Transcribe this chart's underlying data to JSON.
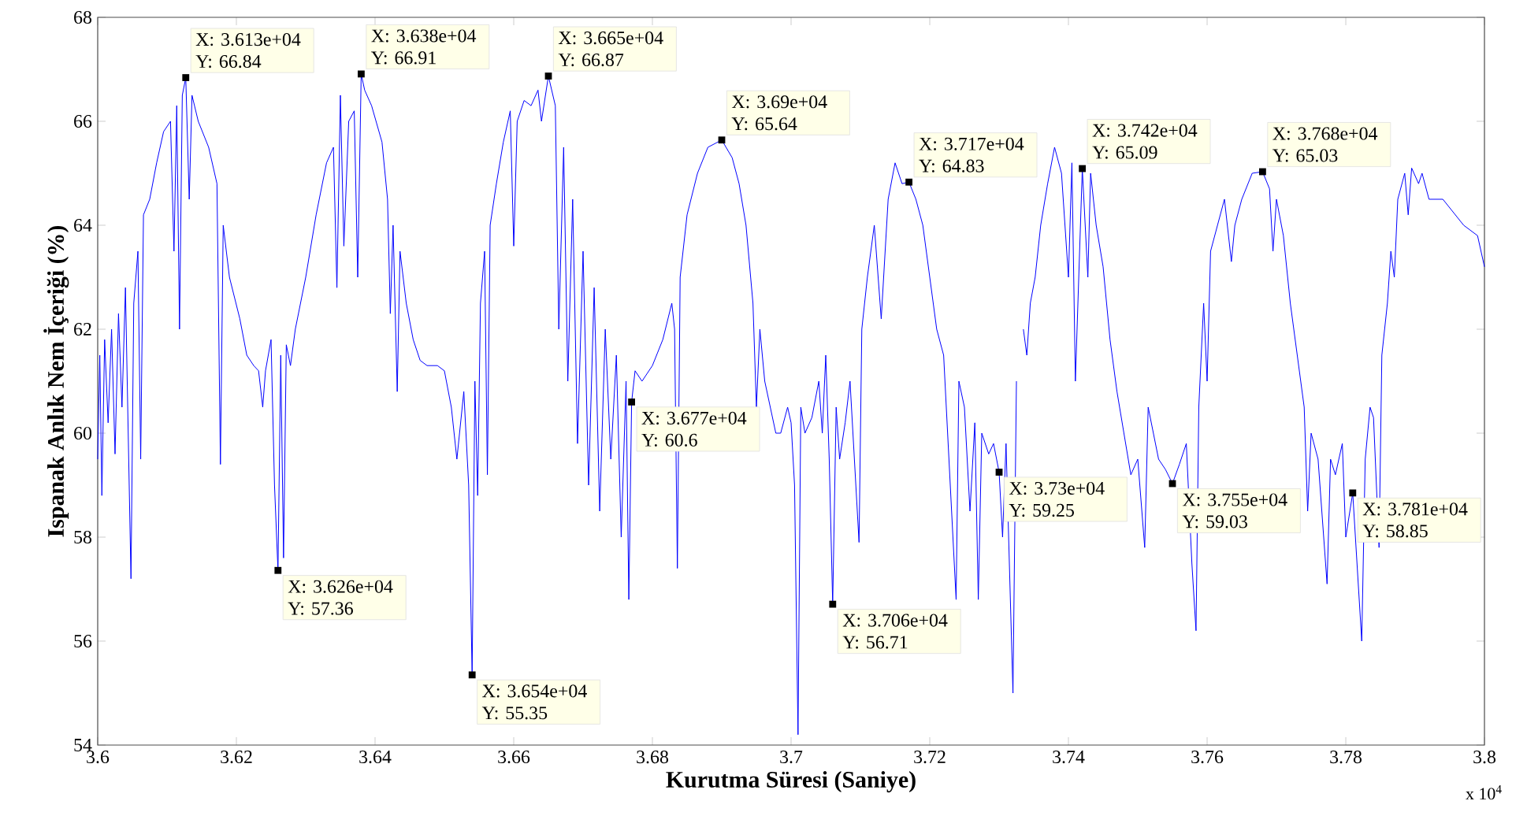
{
  "chart_data": {
    "type": "line",
    "xlabel": "Kurutma Süresi (Saniye)",
    "ylabel": "Ispanak Anlık Nem İçeriği (%)",
    "color": "#0000ff",
    "xlim": [
      3.6,
      3.8
    ],
    "ylim": [
      54,
      68
    ],
    "xticks": [
      3.6,
      3.62,
      3.64,
      3.66,
      3.68,
      3.7,
      3.72,
      3.74,
      3.76,
      3.78,
      3.8
    ],
    "yticks": [
      54,
      56,
      58,
      60,
      62,
      64,
      66,
      68
    ],
    "x": [
      3.6,
      3.6003,
      3.6006,
      3.601,
      3.6015,
      3.602,
      3.6025,
      3.603,
      3.6035,
      3.604,
      3.6048,
      3.6052,
      3.6058,
      3.6062,
      3.6066,
      3.6075,
      3.6085,
      3.6095,
      3.6105,
      3.611,
      3.6114,
      3.6118,
      3.6122,
      3.6127,
      3.6132,
      3.6136,
      3.6145,
      3.616,
      3.6172,
      3.6177,
      3.6181,
      3.619,
      3.6205,
      3.6215,
      3.6225,
      3.6232,
      3.6238,
      3.6242,
      3.625,
      3.6255,
      3.626,
      3.6264,
      3.6268,
      3.6272,
      3.6278,
      3.6285,
      3.63,
      3.6315,
      3.633,
      3.634,
      3.6345,
      3.635,
      3.6355,
      3.6362,
      3.637,
      3.6375,
      3.638,
      3.6385,
      3.6395,
      3.641,
      3.6418,
      3.6422,
      3.6426,
      3.6432,
      3.6436,
      3.6445,
      3.6455,
      3.6465,
      3.6475,
      3.649,
      3.65,
      3.651,
      3.6518,
      3.6528,
      3.6535,
      3.654,
      3.6544,
      3.6548,
      3.6552,
      3.6558,
      3.6562,
      3.6566,
      3.6575,
      3.6585,
      3.6595,
      3.66,
      3.6605,
      3.6615,
      3.6625,
      3.6635,
      3.664,
      3.665,
      3.666,
      3.6665,
      3.6672,
      3.6678,
      3.6685,
      3.6692,
      3.67,
      3.6708,
      3.6716,
      3.6724,
      3.6732,
      3.674,
      3.6748,
      3.6755,
      3.6762,
      3.6766,
      3.677,
      3.6775,
      3.6785,
      3.68,
      3.6815,
      3.6828,
      3.6832,
      3.6836,
      3.684,
      3.685,
      3.6865,
      3.688,
      3.69,
      3.6915,
      3.6925,
      3.6935,
      3.6945,
      3.695,
      3.6955,
      3.6962,
      3.697,
      3.6978,
      3.6985,
      3.6995,
      3.7,
      3.7005,
      3.701,
      3.7014,
      3.702,
      3.703,
      3.704,
      3.7045,
      3.705,
      3.7055,
      3.706,
      3.7065,
      3.707,
      3.7078,
      3.7085,
      3.7098,
      3.7102,
      3.711,
      3.712,
      3.713,
      3.714,
      3.715,
      3.716,
      3.717,
      3.718,
      3.719,
      3.72,
      3.721,
      3.722,
      3.7238,
      3.7242,
      3.725,
      3.7258,
      3.7265,
      3.727,
      3.7275,
      3.7285,
      3.7292,
      3.73,
      3.7305,
      3.731,
      3.732,
      3.7325,
      3.733,
      3.7335,
      3.734,
      3.7345,
      3.7352,
      3.736,
      3.737,
      3.738,
      3.739,
      3.74,
      3.7405,
      3.741,
      3.742,
      3.7428,
      3.7432,
      3.744,
      3.745,
      3.746,
      3.747,
      3.748,
      3.749,
      3.75,
      3.751,
      3.7515,
      3.753,
      3.754,
      3.755,
      3.756,
      3.757,
      3.7578,
      3.7584,
      3.7588,
      3.7595,
      3.76,
      3.7605,
      3.7615,
      3.7625,
      3.7635,
      3.764,
      3.765,
      3.7665,
      3.768,
      3.769,
      3.7695,
      3.77,
      3.771,
      3.772,
      3.773,
      3.774,
      3.7745,
      3.775,
      3.776,
      3.7773,
      3.7778,
      3.7785,
      3.7795,
      3.78,
      3.781,
      3.7823,
      3.7828,
      3.7835,
      3.784,
      3.7848,
      3.7852,
      3.786,
      3.7865,
      3.787,
      3.7875,
      3.7885,
      3.789,
      3.7895,
      3.7905,
      3.791,
      3.792,
      3.794,
      3.797,
      3.799,
      3.8
    ],
    "values": [
      59.5,
      61.5,
      58.8,
      61.8,
      60.2,
      62,
      59.6,
      62.3,
      60.5,
      62.8,
      57.2,
      62.5,
      63.5,
      59.5,
      64.2,
      64.5,
      65.2,
      65.8,
      66.0,
      63.5,
      66.3,
      62.0,
      66.5,
      66.84,
      64.5,
      66.5,
      66.0,
      65.5,
      64.8,
      59.4,
      64.0,
      63.0,
      62.2,
      61.5,
      61.3,
      61.2,
      60.5,
      61.2,
      61.8,
      59.0,
      57.36,
      61.5,
      57.6,
      61.7,
      61.3,
      62.0,
      63.0,
      64.2,
      65.2,
      65.5,
      62.8,
      66.5,
      63.6,
      66.0,
      66.2,
      63.0,
      66.91,
      66.6,
      66.3,
      65.6,
      64.5,
      62.3,
      64.0,
      60.8,
      63.5,
      62.5,
      61.8,
      61.4,
      61.3,
      61.3,
      61.2,
      60.5,
      59.5,
      60.8,
      59.0,
      55.35,
      61.0,
      58.8,
      62.5,
      63.5,
      59.2,
      64.0,
      64.8,
      65.6,
      66.2,
      63.6,
      66.0,
      66.4,
      66.3,
      66.6,
      66.0,
      66.87,
      66.3,
      62.0,
      65.5,
      61.0,
      64.5,
      59.8,
      63.5,
      59.0,
      62.8,
      58.5,
      62.0,
      59.5,
      61.5,
      58.0,
      61.0,
      56.8,
      60.6,
      61.2,
      61.0,
      61.3,
      61.8,
      62.5,
      62.0,
      57.4,
      63.0,
      64.2,
      65.0,
      65.5,
      65.64,
      65.3,
      64.8,
      64.0,
      62.5,
      60.5,
      62.0,
      61.0,
      60.5,
      60.0,
      60.0,
      60.5,
      60.2,
      59.0,
      54.2,
      60.5,
      60.0,
      60.3,
      61.0,
      60.0,
      61.5,
      59.5,
      56.71,
      60.5,
      59.5,
      60.2,
      61.0,
      57.9,
      62.0,
      63.0,
      64.0,
      62.2,
      64.5,
      65.2,
      64.8,
      64.83,
      64.5,
      64.0,
      63.0,
      62.0,
      61.5,
      56.8,
      61.0,
      60.5,
      58.5,
      60.2,
      56.8,
      60.0,
      59.6,
      59.8,
      59.25,
      58.0,
      59.8,
      55.0,
      61.0,
      null,
      62.0,
      61.5,
      62.5,
      63.0,
      64.0,
      64.8,
      65.5,
      65.0,
      63.0,
      65.2,
      61.0,
      65.09,
      63.0,
      65.0,
      64.0,
      63.2,
      61.8,
      60.8,
      60.0,
      59.2,
      59.5,
      57.8,
      60.5,
      59.5,
      59.3,
      59.03,
      59.4,
      59.8,
      57.5,
      56.2,
      60.5,
      62.5,
      61.0,
      63.5,
      64.0,
      64.5,
      63.3,
      64.0,
      64.5,
      65.0,
      65.03,
      64.7,
      63.5,
      64.5,
      63.8,
      62.5,
      61.5,
      60.5,
      58.5,
      60.0,
      59.5,
      57.1,
      59.5,
      59.2,
      59.8,
      58.0,
      58.85,
      56.0,
      59.5,
      60.5,
      60.3,
      57.8,
      61.5,
      62.5,
      63.5,
      63.0,
      64.5,
      65.0,
      64.2,
      65.1,
      64.8,
      65.0,
      64.5,
      64.5,
      64.0,
      63.8,
      63.2
    ],
    "annotations": [
      {
        "text": "X: 3.613e+04 Y: 66.84",
        "x": 3.6127,
        "y": 66.84
      },
      {
        "text": "X: 3.626e+04 Y: 57.36",
        "x": 3.626,
        "y": 57.36
      },
      {
        "text": "X: 3.638e+04 Y: 66.91",
        "x": 3.638,
        "y": 66.91
      },
      {
        "text": "X: 3.654e+04 Y: 55.35",
        "x": 3.654,
        "y": 55.35
      },
      {
        "text": "X: 3.665e+04 Y: 66.87",
        "x": 3.665,
        "y": 66.87
      },
      {
        "text": "X: 3.677e+04 Y: 60.6",
        "x": 3.677,
        "y": 60.6
      },
      {
        "text": "X: 3.69e+04 Y: 65.64",
        "x": 3.69,
        "y": 65.64
      },
      {
        "text": "X: 3.706e+04 Y: 56.71",
        "x": 3.706,
        "y": 56.71
      },
      {
        "text": "X: 3.717e+04 Y: 64.83",
        "x": 3.717,
        "y": 64.83
      },
      {
        "text": "X: 3.73e+04 Y: 59.25",
        "x": 3.73,
        "y": 59.25
      },
      {
        "text": "X: 3.742e+04 Y: 65.09",
        "x": 3.742,
        "y": 65.09
      },
      {
        "text": "X: 3.755e+04 Y: 59.03",
        "x": 3.755,
        "y": 59.03
      },
      {
        "text": "X: 3.768e+04 Y: 65.03",
        "x": 3.768,
        "y": 65.03
      },
      {
        "text": "X: 3.781e+04 Y: 58.85",
        "x": 3.781,
        "y": 58.85
      },
      "x 10$^{4}$"
    ]
  }
}
